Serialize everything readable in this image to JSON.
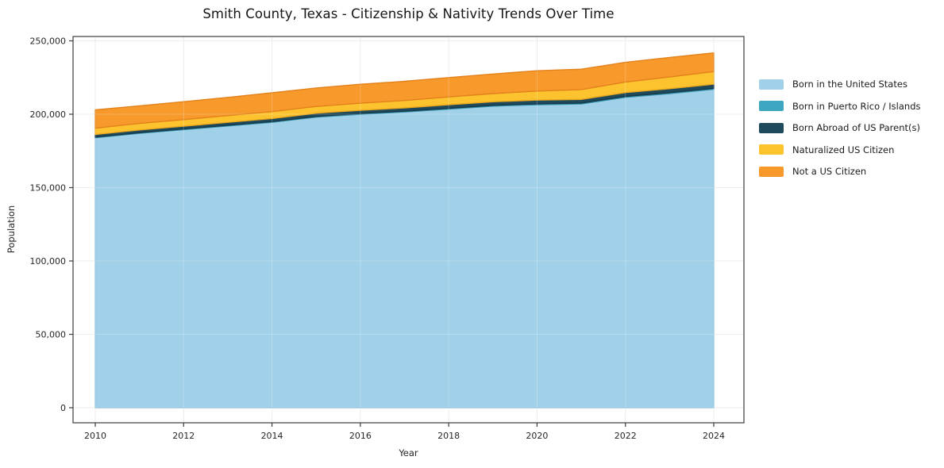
{
  "title": "Smith County, Texas - Citizenship & Nativity Trends Over Time",
  "chart_data": {
    "type": "area",
    "stacked": true,
    "title": "Smith County, Texas - Citizenship & Nativity Trends Over Time",
    "xlabel": "Year",
    "ylabel": "Population",
    "x": [
      2010,
      2011,
      2012,
      2013,
      2014,
      2015,
      2016,
      2017,
      2018,
      2019,
      2020,
      2021,
      2022,
      2023,
      2024
    ],
    "xticks": [
      2010,
      2012,
      2014,
      2016,
      2018,
      2020,
      2022,
      2024
    ],
    "yticks": [
      0,
      50000,
      100000,
      150000,
      200000,
      250000
    ],
    "ytick_labels": [
      "0",
      "50,000",
      "100,000",
      "150,000",
      "200,000",
      "250,000"
    ],
    "ylim": [
      0,
      250000
    ],
    "grid": true,
    "legend_position": "right",
    "series": [
      {
        "name": "Born in the United States",
        "color": "#a1d1e8",
        "edge": "#8ac2dd",
        "values": [
          184000,
          187000,
          189500,
          192000,
          194500,
          198000,
          200000,
          201500,
          203500,
          205500,
          206500,
          207000,
          211500,
          214000,
          217000
        ]
      },
      {
        "name": "Born in Puerto Rico / Islands",
        "color": "#3ea6c0",
        "edge": "#3393ac",
        "values": [
          400,
          420,
          440,
          460,
          480,
          500,
          520,
          540,
          560,
          580,
          600,
          620,
          650,
          680,
          700
        ]
      },
      {
        "name": "Born Abroad of US Parent(s)",
        "color": "#1f4a5c",
        "edge": "#16394a",
        "values": [
          1800,
          1900,
          1900,
          2000,
          2100,
          2200,
          2200,
          2300,
          2400,
          2400,
          2500,
          2500,
          2600,
          2700,
          2800
        ]
      },
      {
        "name": "Naturalized US Citizen",
        "color": "#fdc32f",
        "edge": "#eda81d",
        "values": [
          4300,
          4400,
          4500,
          4600,
          4700,
          4600,
          4800,
          5000,
          5300,
          5600,
          6200,
          6700,
          7200,
          8000,
          8600
        ]
      },
      {
        "name": "Not a US Citizen",
        "color": "#f8992b",
        "edge": "#e3821c",
        "values": [
          12500,
          12000,
          12200,
          12400,
          12800,
          12600,
          12900,
          13100,
          13200,
          13300,
          13800,
          13900,
          13400,
          13300,
          12700
        ]
      }
    ]
  }
}
